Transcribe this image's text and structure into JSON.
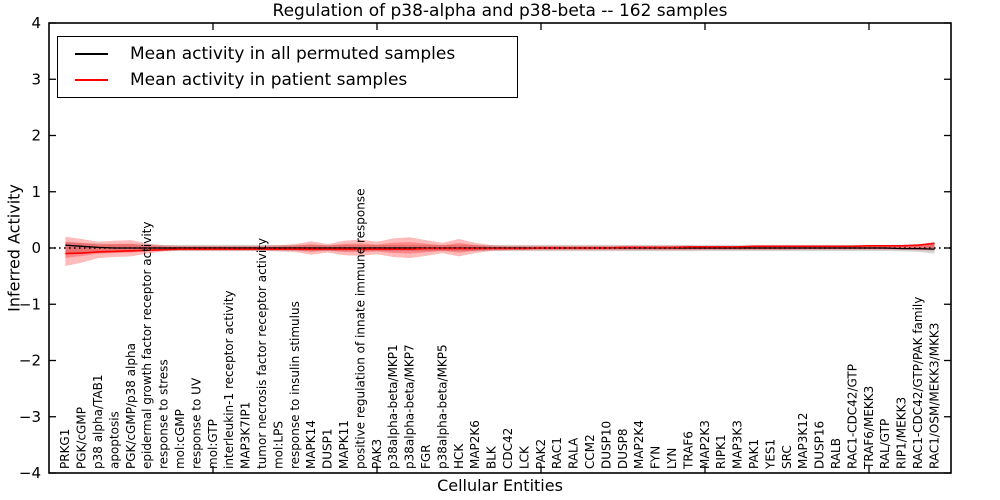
{
  "chart_data": {
    "type": "line",
    "title": "Regulation of p38-alpha and p38-beta -- 162 samples",
    "xlabel": "Cellular Entities",
    "ylabel": "Inferred Activity",
    "ylim": [
      -4,
      4
    ],
    "yticks": [
      -4,
      -3,
      -2,
      -1,
      0,
      1,
      2,
      3,
      4
    ],
    "xtick_indices": [
      9,
      19,
      29,
      39,
      49
    ],
    "grid": false,
    "legend_position": "upper left",
    "zero_line": {
      "color": "#000000",
      "style": "dotted",
      "y": 0
    },
    "categories": [
      "PRKG1",
      "PGK/cGMP",
      "p38 alpha/TAB1",
      "apoptosis",
      "PGK/cGMP/p38 alpha",
      "epidermal growth factor receptor activity",
      "response to stress",
      "mol:cGMP",
      "response to UV",
      "mol:GTP",
      "interleukin-1 receptor activity",
      "MAP3K7IP1",
      "tumor necrosis factor receptor activity",
      "mol:LPS",
      "response to insulin stimulus",
      "MAPK14",
      "DUSP1",
      "MAPK11",
      "positive regulation of innate immune response",
      "PAK3",
      "p38alpha-beta/MKP1",
      "p38alpha-beta/MKP7",
      "FGR",
      "p38alpha-beta/MKP5",
      "HCK",
      "MAP2K6",
      "BLK",
      "CDC42",
      "LCK",
      "PAK2",
      "RAC1",
      "RALA",
      "CCM2",
      "DUSP10",
      "DUSP8",
      "MAP2K4",
      "FYN",
      "LYN",
      "TRAF6",
      "MAP2K3",
      "RIPK1",
      "MAP3K3",
      "PAK1",
      "YES1",
      "SRC",
      "MAP3K12",
      "DUSP16",
      "RALB",
      "RAC1-CDC42/GTP",
      "TRAF6/MEKK3",
      "RAL/GTP",
      "RIP1/MEKK3",
      "RAC1-CDC42/GTP/PAK family",
      "RAC1/OSM/MEKK3/MKK3"
    ],
    "series": [
      {
        "name": "Mean activity in all permuted samples",
        "color": "#000000",
        "style": "solid",
        "values": [
          0.05,
          0.03,
          0.01,
          0,
          0,
          0,
          0,
          0,
          0,
          0,
          0,
          0,
          0,
          0,
          0,
          0,
          0,
          0,
          0,
          0,
          0,
          0,
          0,
          0,
          0,
          0,
          0,
          0,
          0,
          0,
          0,
          0,
          0,
          0,
          0,
          0,
          0,
          0,
          0,
          0,
          0,
          0,
          0,
          0,
          0,
          0,
          0,
          0,
          0,
          0,
          0,
          -0.01,
          -0.01,
          -0.02
        ]
      },
      {
        "name": "Mean activity in patient samples",
        "color": "#ff0000",
        "style": "solid",
        "values": [
          -0.1,
          -0.09,
          -0.07,
          -0.06,
          -0.05,
          -0.04,
          -0.03,
          -0.02,
          -0.02,
          -0.02,
          -0.02,
          -0.02,
          -0.02,
          -0.02,
          -0.02,
          -0.02,
          -0.02,
          -0.02,
          -0.02,
          -0.02,
          -0.02,
          -0.02,
          -0.01,
          -0.01,
          -0.01,
          -0.01,
          -0.01,
          -0.01,
          -0.01,
          0,
          0,
          0,
          0,
          0,
          0.01,
          0.01,
          0.01,
          0.01,
          0.02,
          0.02,
          0.02,
          0.02,
          0.03,
          0.03,
          0.03,
          0.03,
          0.03,
          0.03,
          0.03,
          0.04,
          0.04,
          0.04,
          0.05,
          0.08
        ]
      }
    ],
    "bands": [
      {
        "name": "permuted samples range",
        "color": "#999999",
        "opacity": 0.4,
        "upper": [
          0.1,
          0.09,
          0.08,
          0.07,
          0.07,
          0.06,
          0.055,
          0.055,
          0.055,
          0.055,
          0.055,
          0.055,
          0.055,
          0.055,
          0.055,
          0.055,
          0.055,
          0.055,
          0.055,
          0.055,
          0.055,
          0.055,
          0.055,
          0.055,
          0.055,
          0.055,
          0.055,
          0.055,
          0.055,
          0.055,
          0.055,
          0.055,
          0.055,
          0.055,
          0.055,
          0.055,
          0.055,
          0.055,
          0.055,
          0.055,
          0.055,
          0.055,
          0.055,
          0.055,
          0.055,
          0.055,
          0.055,
          0.055,
          0.055,
          0.055,
          0.055,
          0.06,
          0.07,
          0.1
        ],
        "lower": [
          -0.1,
          -0.09,
          -0.08,
          -0.07,
          -0.07,
          -0.06,
          -0.055,
          -0.055,
          -0.055,
          -0.055,
          -0.055,
          -0.055,
          -0.055,
          -0.055,
          -0.055,
          -0.055,
          -0.055,
          -0.055,
          -0.055,
          -0.055,
          -0.055,
          -0.055,
          -0.055,
          -0.055,
          -0.055,
          -0.055,
          -0.055,
          -0.055,
          -0.055,
          -0.055,
          -0.055,
          -0.055,
          -0.055,
          -0.055,
          -0.055,
          -0.055,
          -0.055,
          -0.055,
          -0.055,
          -0.055,
          -0.055,
          -0.055,
          -0.055,
          -0.055,
          -0.055,
          -0.055,
          -0.055,
          -0.055,
          -0.055,
          -0.055,
          -0.055,
          -0.06,
          -0.07,
          -0.1
        ]
      },
      {
        "name": "patient samples range",
        "color": "#ff0000",
        "opacity": 0.27,
        "inner_scale": 0.55,
        "upper": [
          0.2,
          0.16,
          0.11,
          0.13,
          0.14,
          0.08,
          0.05,
          0.04,
          0.04,
          0.04,
          0.04,
          0.04,
          0.04,
          0.05,
          0.07,
          0.12,
          0.07,
          0.13,
          0.15,
          0.11,
          0.17,
          0.19,
          0.14,
          0.09,
          0.16,
          0.09,
          0.05,
          0.04,
          0.04,
          0.04,
          0.04,
          0.04,
          0.04,
          0.04,
          0.04,
          0.04,
          0.04,
          0.04,
          0.04,
          0.03,
          0.03,
          0.03,
          0.03,
          0.03,
          0.03,
          0.03,
          0.03,
          0.03,
          0.03,
          0.04,
          0.04,
          0.05,
          0.06,
          0.11
        ],
        "lower": [
          -0.32,
          -0.26,
          -0.18,
          -0.16,
          -0.15,
          -0.1,
          -0.06,
          -0.05,
          -0.05,
          -0.05,
          -0.05,
          -0.05,
          -0.05,
          -0.06,
          -0.07,
          -0.12,
          -0.08,
          -0.13,
          -0.14,
          -0.11,
          -0.16,
          -0.18,
          -0.14,
          -0.09,
          -0.15,
          -0.09,
          -0.05,
          -0.04,
          -0.04,
          -0.04,
          -0.04,
          -0.04,
          -0.04,
          -0.04,
          -0.04,
          -0.04,
          -0.04,
          -0.04,
          -0.04,
          -0.035,
          -0.035,
          -0.035,
          -0.035,
          -0.035,
          -0.035,
          -0.03,
          -0.03,
          -0.03,
          -0.03,
          -0.03,
          -0.03,
          -0.03,
          -0.04,
          -0.05
        ]
      }
    ]
  }
}
